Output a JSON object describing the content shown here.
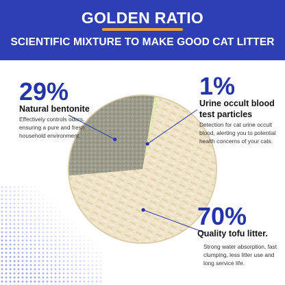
{
  "header": {
    "title": "GOLDEN RATIO",
    "subtitle": "SCIENTIFIC MIXTURE TO MAKE GOOD CAT LITTER"
  },
  "colors": {
    "header_bg": "#2d3fb3",
    "accent": "#2435a8",
    "underline": "#f2a33a",
    "bentonite": "#9a9b8a",
    "tofu": "#efe3c8",
    "test_particles": "#e6e8b4"
  },
  "chart_data": {
    "type": "pie",
    "categories": [
      "Natural bentonite",
      "Urine occult blood test particles",
      "Quality tofu litter."
    ],
    "values": [
      29,
      1,
      70
    ],
    "labels": [
      "29%",
      "1%",
      "70%"
    ],
    "descriptions": [
      "Effectively controls odors, ensuring a pure and fresh household environment.",
      "Detection for cat urine occult blood, alerting you to potential health concerns of your cats.",
      "Strong water absorption, fast clumping, less litter use and long service life."
    ]
  }
}
